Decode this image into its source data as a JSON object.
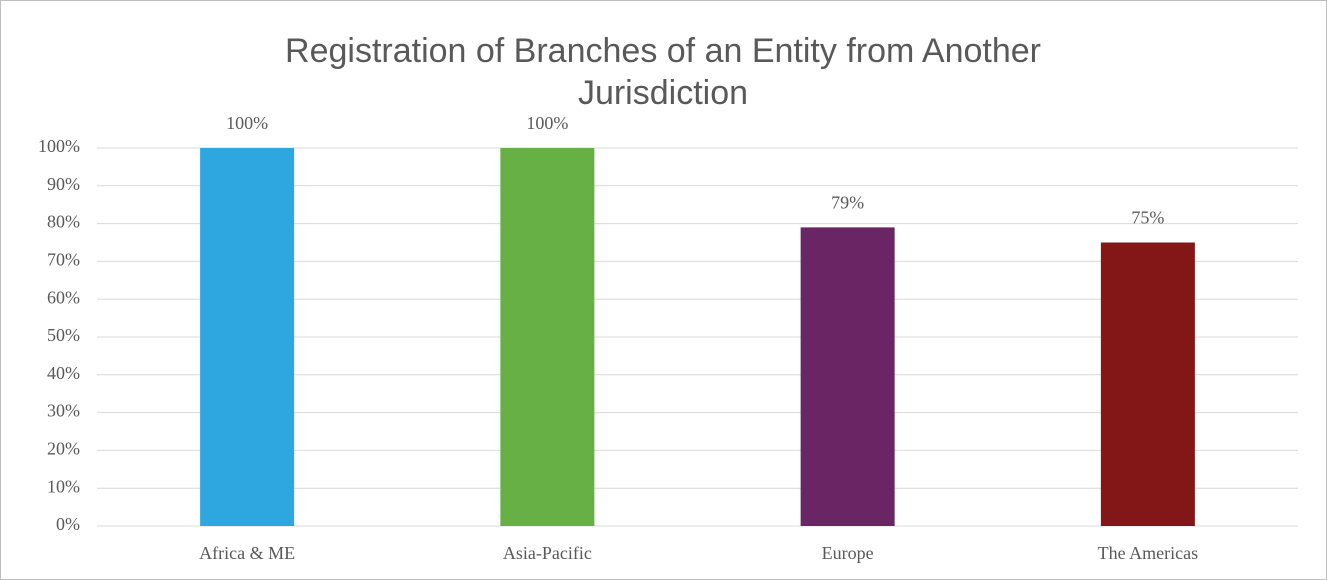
{
  "chart_data": {
    "type": "bar",
    "title": "Registration of Branches of an Entity from Another Jurisdiction",
    "categories": [
      "Africa & ME",
      "Asia-Pacific",
      "Europe",
      "The Americas"
    ],
    "values": [
      100,
      100,
      79,
      75
    ],
    "value_labels": [
      "100%",
      "100%",
      "79%",
      "75%"
    ],
    "colors": [
      "#2ea6e0",
      "#67b045",
      "#692564",
      "#831616"
    ],
    "ylim": [
      0,
      100
    ],
    "yticks": [
      {
        "value": 0,
        "label": "0%"
      },
      {
        "value": 10,
        "label": "10%"
      },
      {
        "value": 20,
        "label": "20%"
      },
      {
        "value": 30,
        "label": "30%"
      },
      {
        "value": 40,
        "label": "40%"
      },
      {
        "value": 50,
        "label": "50%"
      },
      {
        "value": 60,
        "label": "60%"
      },
      {
        "value": 70,
        "label": "70%"
      },
      {
        "value": 80,
        "label": "80%"
      },
      {
        "value": 90,
        "label": "90%"
      },
      {
        "value": 100,
        "label": "100%"
      }
    ],
    "grid": true
  }
}
